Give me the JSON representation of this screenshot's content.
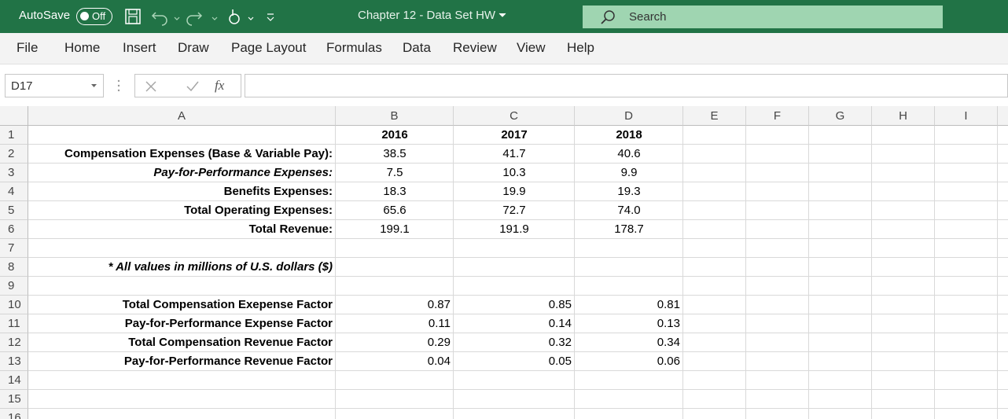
{
  "title_bar": {
    "autosave": "AutoSave",
    "toggle": "Off",
    "document_title": "Chapter 12 - Data Set HW",
    "search": "Search"
  },
  "ribbon_tabs": [
    "File",
    "Home",
    "Insert",
    "Draw",
    "Page Layout",
    "Formulas",
    "Data",
    "Review",
    "View",
    "Help"
  ],
  "formula_bar": {
    "name_box": "D17",
    "function_icon": "fx"
  },
  "sheet": {
    "columns": [
      "A",
      "B",
      "C",
      "D",
      "E",
      "F",
      "G",
      "H",
      "I"
    ],
    "row_numbers": [
      1,
      2,
      3,
      4,
      5,
      6,
      7,
      8,
      9,
      10,
      11,
      12,
      13,
      14,
      15,
      16
    ],
    "year_header": [
      "2016",
      "2017",
      "2018"
    ],
    "expenses": [
      {
        "label": "Compensation Expenses (Base & Variable Pay):",
        "values": [
          "38.5",
          "41.7",
          "40.6"
        ]
      },
      {
        "label": "Pay-for-Performance Expenses:",
        "values": [
          "7.5",
          "10.3",
          "9.9"
        ]
      },
      {
        "label": "Benefits Expenses:",
        "values": [
          "18.3",
          "19.9",
          "19.3"
        ]
      },
      {
        "label": "Total Operating Expenses:",
        "values": [
          "65.6",
          "72.7",
          "74.0"
        ]
      },
      {
        "label": "Total Revenue:",
        "values": [
          "199.1",
          "191.9",
          "178.7"
        ]
      }
    ],
    "note": "* All values in millions of U.S. dollars ($)",
    "factors": [
      {
        "label": "Total Compensation Exepense Factor",
        "values": [
          "0.87",
          "0.85",
          "0.81"
        ]
      },
      {
        "label": "Pay-for-Performance Expense Factor",
        "values": [
          "0.11",
          "0.14",
          "0.13"
        ]
      },
      {
        "label": "Total Compensation Revenue Factor",
        "values": [
          "0.29",
          "0.32",
          "0.34"
        ]
      },
      {
        "label": "Pay-for-Performance Revenue Factor",
        "values": [
          "0.04",
          "0.05",
          "0.06"
        ]
      }
    ]
  }
}
